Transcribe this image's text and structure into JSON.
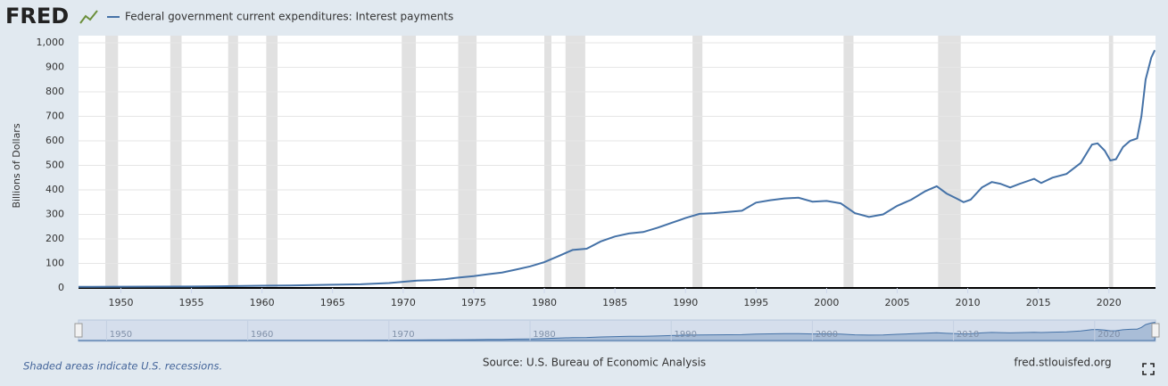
{
  "logo": "FRED",
  "chart_data": {
    "type": "line",
    "y_label": "Billions of Dollars",
    "x": [
      1947,
      1948,
      1950,
      1952,
      1955,
      1957,
      1960,
      1962,
      1965,
      1967,
      1969,
      1970,
      1971,
      1972,
      1973,
      1974,
      1975,
      1976,
      1977,
      1978,
      1979,
      1980,
      1981,
      1982,
      1983,
      1984,
      1985,
      1986,
      1987,
      1988,
      1989,
      1990,
      1991,
      1992,
      1993,
      1994,
      1995,
      1996,
      1997,
      1998,
      1999,
      2000,
      2001,
      2002,
      2003,
      2004,
      2005,
      2006,
      2007,
      2007.8,
      2008.5,
      2009.2,
      2009.7,
      2010.2,
      2011,
      2011.7,
      2012.3,
      2013,
      2013.7,
      2014.7,
      2015.2,
      2016,
      2017,
      2018,
      2018.8,
      2019.2,
      2019.7,
      2020.1,
      2020.5,
      2021,
      2021.5,
      2022,
      2022.3,
      2022.6,
      2023,
      2023.25
    ],
    "series": [
      {
        "name": "Federal government current expenditures: Interest payments",
        "color": "#4572a7",
        "values": [
          4.5,
          4.6,
          5,
          5.3,
          6,
          7,
          9,
          10,
          13,
          15,
          20,
          25,
          30,
          32,
          36,
          43,
          48,
          56,
          63,
          75,
          88,
          105,
          130,
          155,
          160,
          190,
          210,
          222,
          228,
          245,
          265,
          285,
          302,
          305,
          310,
          315,
          348,
          358,
          365,
          368,
          352,
          355,
          345,
          305,
          290,
          300,
          335,
          360,
          395,
          415,
          385,
          365,
          350,
          360,
          410,
          432,
          425,
          410,
          425,
          445,
          428,
          450,
          465,
          510,
          585,
          590,
          560,
          520,
          525,
          575,
          600,
          610,
          700,
          850,
          940,
          970
        ]
      }
    ],
    "recessions": [
      [
        1948.9,
        1949.8
      ],
      [
        1953.5,
        1954.3
      ],
      [
        1957.6,
        1958.3
      ],
      [
        1960.3,
        1961.1
      ],
      [
        1969.9,
        1970.9
      ],
      [
        1973.9,
        1975.2
      ],
      [
        1980.0,
        1980.5
      ],
      [
        1981.5,
        1982.9
      ],
      [
        1990.5,
        1991.2
      ],
      [
        2001.2,
        2001.9
      ],
      [
        2007.9,
        2009.5
      ],
      [
        2020.0,
        2020.3
      ]
    ],
    "recession_note": "Shaded areas indicate U.S. recessions.",
    "source": "Source: U.S. Bureau of Economic Analysis",
    "site": "fred.stlouisfed.org",
    "xlim": [
      1947,
      2023.3
    ],
    "ylim": [
      0,
      1000
    ],
    "xticks": [
      1950,
      1955,
      1960,
      1965,
      1970,
      1975,
      1980,
      1985,
      1990,
      1995,
      2000,
      2005,
      2010,
      2015,
      2020
    ],
    "yticks": [
      0,
      100,
      200,
      300,
      400,
      500,
      600,
      700,
      800,
      900,
      {
        "value": 1000,
        "label": "1,000"
      }
    ],
    "navigator_xticks": [
      1950,
      1960,
      1970,
      1980,
      1990,
      2000,
      2010,
      2020
    ],
    "grid": true
  }
}
